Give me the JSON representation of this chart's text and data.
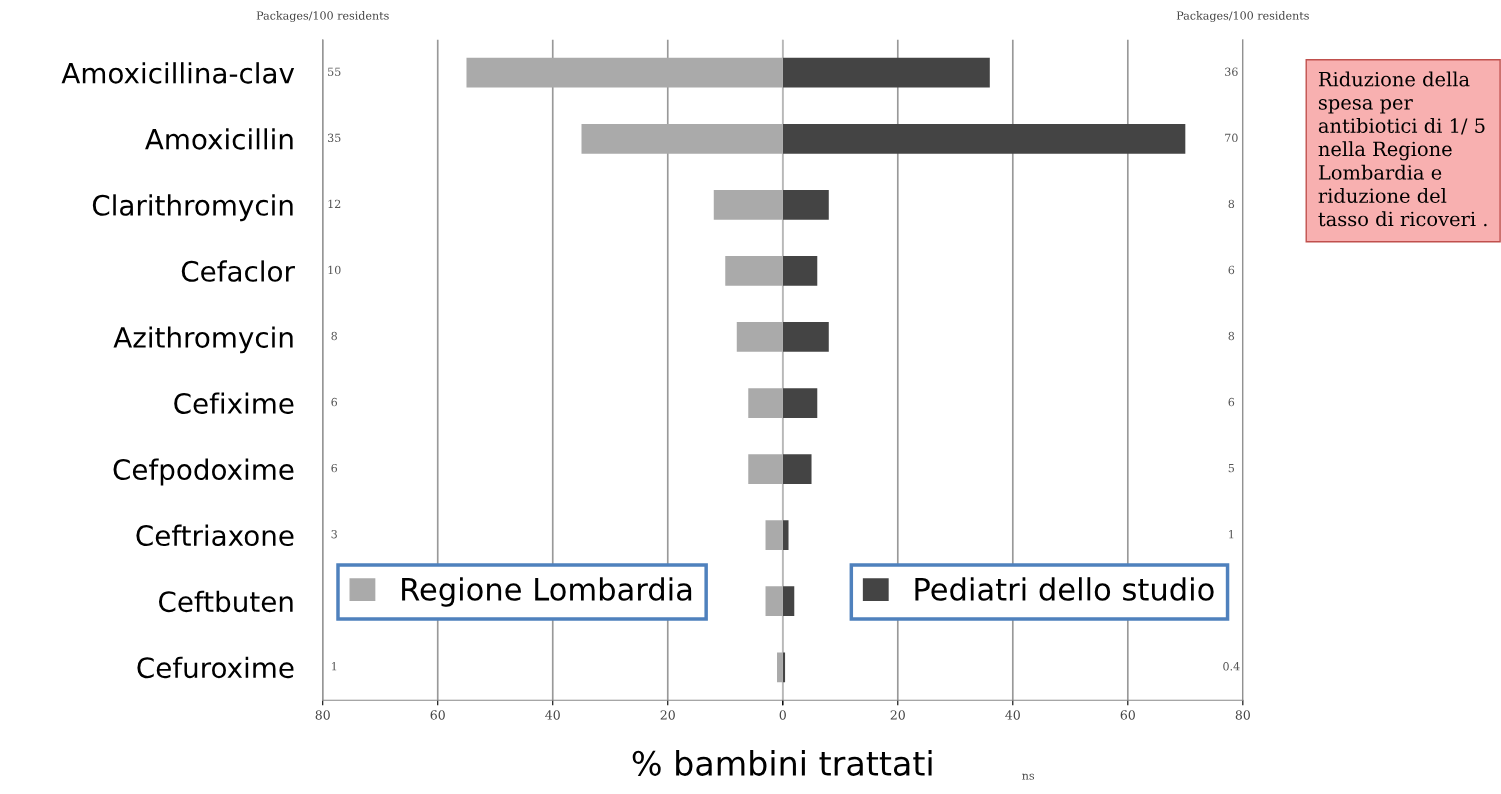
{
  "chart_data": [
    {
      "type": "bar",
      "orientation": "horizontal",
      "xlabel": "% bambini trattati",
      "categories": [
        "Amoxicillina-clav",
        "Amoxicillin",
        "Clarithromycin",
        "Cefaclor",
        "Azithromycin",
        "Cefixime",
        "Cefpodoxime",
        "Ceftriaxone",
        "Ceftbuten",
        "Cefuroxime"
      ],
      "series": [
        {
          "name": "Regione Lombardia",
          "color": "#aaaaaa",
          "values": [
            55,
            35,
            12,
            10,
            8,
            6,
            6,
            3,
            3,
            1
          ],
          "value_labels": [
            "55",
            "35",
            "12",
            "10",
            "8",
            "6",
            "6",
            "3",
            null,
            "1"
          ]
        }
      ],
      "xlim": [
        80,
        0
      ],
      "xticks": [
        80,
        60,
        40,
        20,
        {
          "value": 0,
          "label": null
        }
      ],
      "grid": "x",
      "legend": "bottom left",
      "annotations": [
        "Packages/100 residents"
      ]
    },
    {
      "type": "bar",
      "orientation": "horizontal",
      "categories": [
        null,
        null,
        null,
        null,
        null,
        null,
        null,
        null,
        null,
        null
      ],
      "series": [
        {
          "name": "Pediatri dello studio",
          "color": "#444444",
          "values": [
            36,
            70,
            8,
            6,
            8,
            6,
            5,
            1,
            2,
            0.4
          ],
          "value_labels": [
            "36",
            "70",
            "8",
            "6",
            "8",
            "6",
            "5",
            "1",
            null,
            "0.4"
          ]
        }
      ],
      "xlim": [
        0,
        80
      ],
      "xticks": [
        0,
        20,
        40,
        60,
        80
      ],
      "grid": "x",
      "legend": "bottom right",
      "tick_labels": "x",
      "annotations": [
        "Packages/100 residents",
        "Riduzione della spesa per antibiotici di 1/ 5 nella Regione Lombardia e riduzione del tasso di ricoveri .",
        "ns"
      ]
    }
  ]
}
